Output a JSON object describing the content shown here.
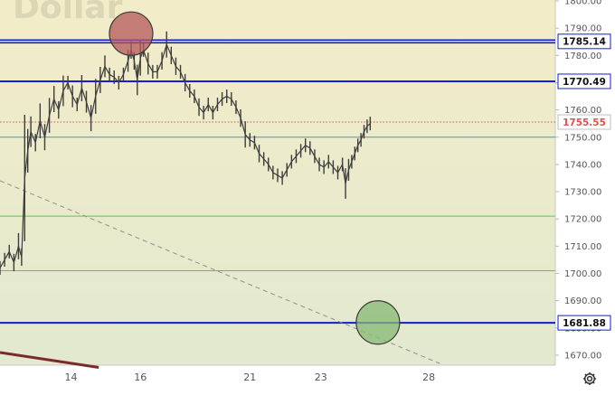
{
  "symbol_watermark": "Dollar",
  "colors": {
    "background_top": "#f3ecc8",
    "background_bottom": "#e2e9cf",
    "level_blue": "#0f1fdc",
    "level_green": "#58c75a",
    "level_teal": "#2f9fd0",
    "current_price_line": "#d9534f",
    "candle": "#3d3d3d",
    "trendline_dashed": "#8f8f8f",
    "trendline_brown": "#7a2a2a",
    "circle_red_fill": "#b4585a",
    "circle_green_fill": "#86b873"
  },
  "settings_icon": "gear-icon",
  "chart_data": {
    "type": "line",
    "style": "candlestick-like price series",
    "ylim": [
      1665,
      1805
    ],
    "y_ticks": [
      1670,
      1680,
      1690,
      1700,
      1710,
      1720,
      1730,
      1740,
      1750,
      1760,
      1770,
      1780,
      1790,
      1800
    ],
    "x_tick_labels": [
      "14",
      "16",
      "21",
      "23",
      "28"
    ],
    "horizontal_levels": [
      {
        "price": 1785.14,
        "label": "1785.14",
        "color": "level_blue",
        "style": "double"
      },
      {
        "price": 1770.49,
        "label": "1770.49",
        "color": "level_blue",
        "style": "solid"
      },
      {
        "price": 1755.55,
        "label": "1755.55",
        "color": "current_price_line",
        "style": "dotted",
        "current": true
      },
      {
        "price": 1750.0,
        "label": "",
        "color": "level_teal",
        "style": "thin"
      },
      {
        "price": 1721.0,
        "label": "",
        "color": "level_green",
        "style": "thin"
      },
      {
        "price": 1701.0,
        "label": "",
        "color": "level_green",
        "style": "thin"
      },
      {
        "price": 1681.88,
        "label": "1681.88",
        "color": "level_blue",
        "style": "solid"
      }
    ],
    "price_series": [
      {
        "x": 0,
        "y": 1702
      },
      {
        "x": 0.3,
        "y": 1705
      },
      {
        "x": 0.6,
        "y": 1708
      },
      {
        "x": 0.9,
        "y": 1704
      },
      {
        "x": 1.2,
        "y": 1710
      },
      {
        "x": 1.4,
        "y": 1706
      },
      {
        "x": 1.6,
        "y": 1735
      },
      {
        "x": 1.8,
        "y": 1745
      },
      {
        "x": 2.0,
        "y": 1752
      },
      {
        "x": 2.3,
        "y": 1748
      },
      {
        "x": 2.6,
        "y": 1756
      },
      {
        "x": 2.9,
        "y": 1750
      },
      {
        "x": 3.2,
        "y": 1758
      },
      {
        "x": 3.5,
        "y": 1764
      },
      {
        "x": 3.8,
        "y": 1760
      },
      {
        "x": 4.1,
        "y": 1767
      },
      {
        "x": 4.4,
        "y": 1770
      },
      {
        "x": 4.7,
        "y": 1765
      },
      {
        "x": 5.0,
        "y": 1762
      },
      {
        "x": 5.3,
        "y": 1768
      },
      {
        "x": 5.6,
        "y": 1763
      },
      {
        "x": 5.9,
        "y": 1757
      },
      {
        "x": 6.2,
        "y": 1765
      },
      {
        "x": 6.5,
        "y": 1771
      },
      {
        "x": 6.8,
        "y": 1776
      },
      {
        "x": 7.1,
        "y": 1773
      },
      {
        "x": 7.4,
        "y": 1772
      },
      {
        "x": 7.7,
        "y": 1770
      },
      {
        "x": 8.0,
        "y": 1773
      },
      {
        "x": 8.3,
        "y": 1778
      },
      {
        "x": 8.5,
        "y": 1782
      },
      {
        "x": 8.7,
        "y": 1778
      },
      {
        "x": 8.9,
        "y": 1771
      },
      {
        "x": 9.1,
        "y": 1779
      },
      {
        "x": 9.3,
        "y": 1782
      },
      {
        "x": 9.6,
        "y": 1777
      },
      {
        "x": 9.9,
        "y": 1774
      },
      {
        "x": 10.2,
        "y": 1774
      },
      {
        "x": 10.5,
        "y": 1778
      },
      {
        "x": 10.8,
        "y": 1784
      },
      {
        "x": 11.1,
        "y": 1780
      },
      {
        "x": 11.4,
        "y": 1776
      },
      {
        "x": 11.7,
        "y": 1774
      },
      {
        "x": 12.0,
        "y": 1770
      },
      {
        "x": 12.3,
        "y": 1767
      },
      {
        "x": 12.6,
        "y": 1765
      },
      {
        "x": 12.9,
        "y": 1761
      },
      {
        "x": 13.2,
        "y": 1759
      },
      {
        "x": 13.5,
        "y": 1762
      },
      {
        "x": 13.8,
        "y": 1759
      },
      {
        "x": 14.1,
        "y": 1762
      },
      {
        "x": 14.4,
        "y": 1764
      },
      {
        "x": 14.7,
        "y": 1765
      },
      {
        "x": 15.0,
        "y": 1764
      },
      {
        "x": 15.3,
        "y": 1761
      },
      {
        "x": 15.6,
        "y": 1757
      },
      {
        "x": 15.9,
        "y": 1751
      },
      {
        "x": 16.2,
        "y": 1749
      },
      {
        "x": 16.5,
        "y": 1748
      },
      {
        "x": 16.8,
        "y": 1744
      },
      {
        "x": 17.1,
        "y": 1742
      },
      {
        "x": 17.4,
        "y": 1740
      },
      {
        "x": 17.7,
        "y": 1737
      },
      {
        "x": 18.0,
        "y": 1736
      },
      {
        "x": 18.3,
        "y": 1735
      },
      {
        "x": 18.6,
        "y": 1738
      },
      {
        "x": 18.9,
        "y": 1741
      },
      {
        "x": 19.2,
        "y": 1743
      },
      {
        "x": 19.5,
        "y": 1745
      },
      {
        "x": 19.8,
        "y": 1747
      },
      {
        "x": 20.1,
        "y": 1746
      },
      {
        "x": 20.4,
        "y": 1743
      },
      {
        "x": 20.7,
        "y": 1740
      },
      {
        "x": 21.0,
        "y": 1739
      },
      {
        "x": 21.3,
        "y": 1741
      },
      {
        "x": 21.6,
        "y": 1739
      },
      {
        "x": 21.9,
        "y": 1737
      },
      {
        "x": 22.2,
        "y": 1740
      },
      {
        "x": 22.4,
        "y": 1733
      },
      {
        "x": 22.6,
        "y": 1738
      },
      {
        "x": 22.8,
        "y": 1741
      },
      {
        "x": 23.0,
        "y": 1744
      },
      {
        "x": 23.2,
        "y": 1747
      },
      {
        "x": 23.4,
        "y": 1749
      },
      {
        "x": 23.6,
        "y": 1752
      },
      {
        "x": 23.8,
        "y": 1754
      },
      {
        "x": 24.0,
        "y": 1755
      }
    ],
    "x_axis_range": [
      0,
      36
    ],
    "x_tick_positions": [
      4.6,
      9.1,
      16.2,
      20.8,
      27.8
    ],
    "dashed_trendline": [
      {
        "x": 0,
        "y": 1734
      },
      {
        "x": 28.5,
        "y": 1667
      }
    ],
    "brown_trendline": [
      {
        "x": 0,
        "y": 1671
      },
      {
        "x": 6.4,
        "y": 1665.5
      }
    ],
    "markers": [
      {
        "x": 8.5,
        "y": 1788,
        "kind": "resistance-circle",
        "color": "circle_red_fill"
      },
      {
        "x": 24.5,
        "y": 1682,
        "kind": "target-circle",
        "color": "circle_green_fill"
      }
    ]
  }
}
